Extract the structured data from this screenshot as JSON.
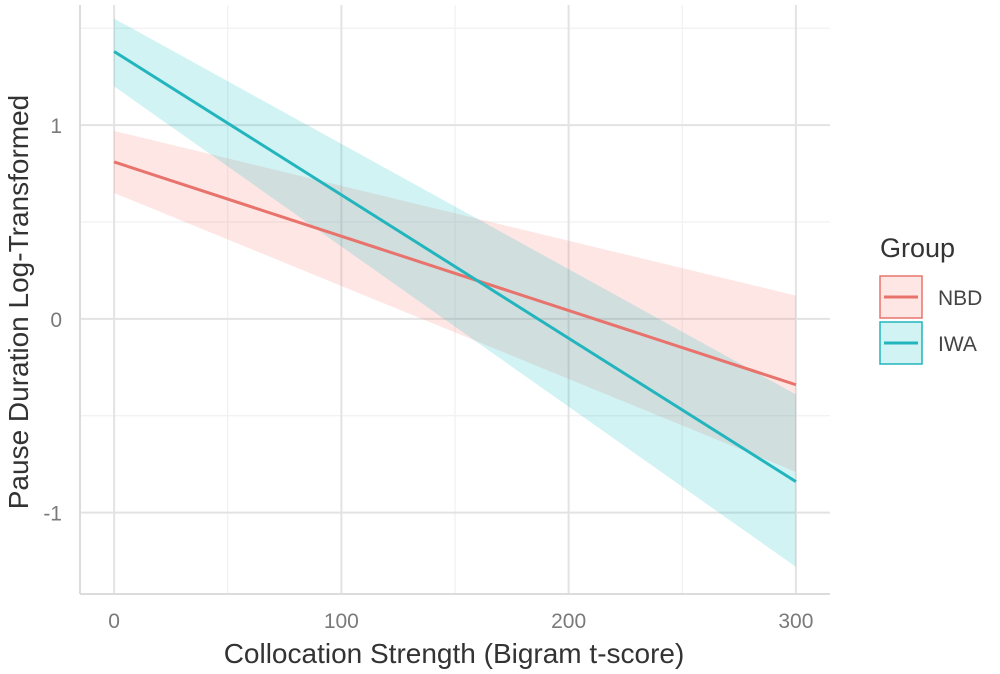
{
  "chart_data": {
    "type": "line",
    "xlabel": "Collocation Strength (Bigram t-score)",
    "ylabel": "Pause Duration Log-Transformed",
    "xlim": [
      -15,
      315
    ],
    "ylim": [
      -1.42,
      1.62
    ],
    "x_ticks": [
      {
        "value": 0,
        "label": "0"
      },
      {
        "value": 100,
        "label": "100"
      },
      {
        "value": 200,
        "label": "200"
      },
      {
        "value": 300,
        "label": "300"
      }
    ],
    "x_minor_ticks": [
      50,
      150,
      250
    ],
    "y_ticks": [
      {
        "value": 1,
        "label": "1"
      },
      {
        "value": 0,
        "label": "0"
      },
      {
        "value": -1,
        "label": "-1"
      }
    ],
    "y_minor_ticks": [
      1.5,
      0.5,
      -0.5
    ],
    "grid": true,
    "legend": {
      "title": "Group",
      "position": "right"
    },
    "series": [
      {
        "name": "NBD",
        "color": "#E8736C",
        "band_color": "#F8766D",
        "x": [
          0,
          300
        ],
        "values": [
          0.81,
          -0.34
        ],
        "ci_lower": [
          0.65,
          -0.79
        ],
        "ci_upper": [
          0.97,
          0.12
        ]
      },
      {
        "name": "IWA",
        "color": "#22B5BD",
        "band_color": "#00BFC4",
        "x": [
          0,
          300
        ],
        "values": [
          1.38,
          -0.84
        ],
        "ci_lower": [
          1.2,
          -1.28
        ],
        "ci_upper": [
          1.55,
          -0.39
        ]
      }
    ]
  }
}
